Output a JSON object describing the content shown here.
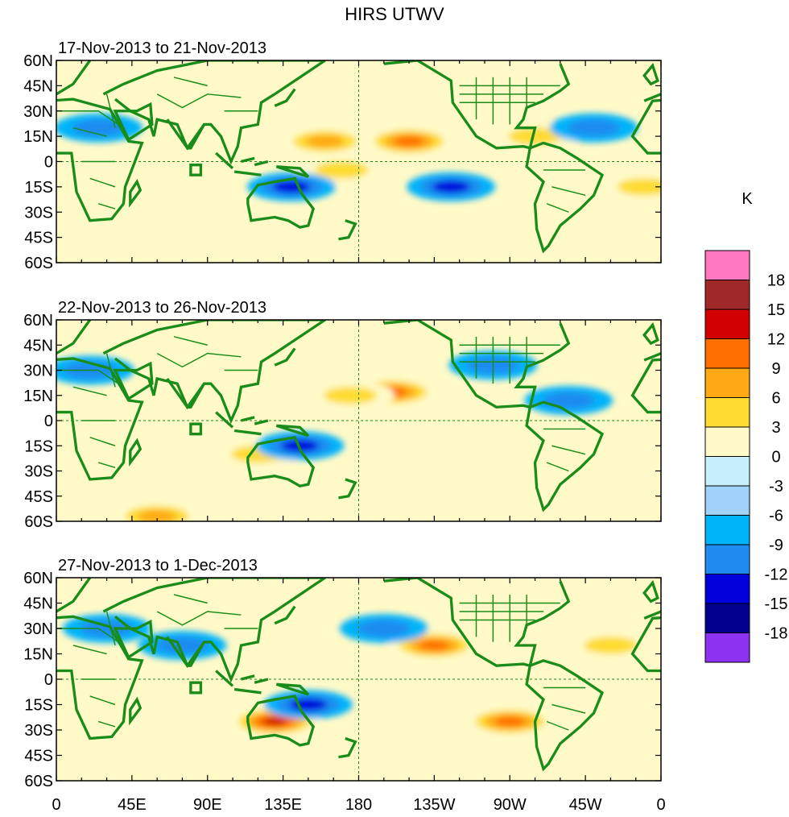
{
  "figure": {
    "title": "HIRS UTWV",
    "units_label": "K"
  },
  "panels": [
    {
      "label": "17-Nov-2013 to 21-Nov-2013"
    },
    {
      "label": "22-Nov-2013 to 26-Nov-2013"
    },
    {
      "label": "27-Nov-2013 to 1-Dec-2013"
    }
  ],
  "y_ticks": [
    "60N",
    "45N",
    "30N",
    "15N",
    "0",
    "15S",
    "30S",
    "45S",
    "60S"
  ],
  "x_ticks": [
    "0",
    "45E",
    "90E",
    "135E",
    "180",
    "135W",
    "90W",
    "45W",
    "0"
  ],
  "colorbar": {
    "labels": [
      "18",
      "15",
      "12",
      "9",
      "6",
      "3",
      "0",
      "-3",
      "-6",
      "-9",
      "-12",
      "-15",
      "-18"
    ],
    "colors": [
      "#ff78c0",
      "#a02828",
      "#d20000",
      "#ff6e00",
      "#ffaa14",
      "#ffdc32",
      "#fffac8",
      "#c8f0fa",
      "#a0d2fa",
      "#00b4fa",
      "#1e8cf0",
      "#0000dc",
      "#00008c",
      "#8c32f0"
    ]
  },
  "chart_data": {
    "type": "heatmap",
    "title": "HIRS UTWV",
    "colorbar_unit": "K",
    "colorbar_levels": [
      -18,
      -15,
      -12,
      -9,
      -6,
      -3,
      0,
      3,
      6,
      9,
      12,
      15,
      18
    ],
    "x_range_deg": [
      0,
      360
    ],
    "y_range_deg": [
      -60,
      60
    ],
    "xticklabels": [
      "0",
      "45E",
      "90E",
      "135E",
      "180",
      "135W",
      "90W",
      "45W",
      "0"
    ],
    "yticklabels": [
      "60N",
      "45N",
      "30N",
      "15N",
      "0",
      "15S",
      "30S",
      "45S",
      "60S"
    ],
    "panels": [
      {
        "label": "17-Nov-2013 to 21-Nov-2013",
        "anomalies": [
          {
            "lon": 210,
            "lat": 12,
            "value": 12
          },
          {
            "lon": 160,
            "lat": 12,
            "value": 9
          },
          {
            "lon": 285,
            "lat": 15,
            "value": 6
          },
          {
            "lon": 170,
            "lat": -5,
            "value": 6
          },
          {
            "lon": 350,
            "lat": -15,
            "value": 6
          },
          {
            "lon": 235,
            "lat": -15,
            "value": -9
          },
          {
            "lon": 140,
            "lat": -15,
            "value": -9
          },
          {
            "lon": 25,
            "lat": 20,
            "value": -6
          },
          {
            "lon": 320,
            "lat": 20,
            "value": -6
          }
        ]
      },
      {
        "label": "22-Nov-2013 to 26-Nov-2013",
        "anomalies": [
          {
            "lon": 200,
            "lat": 17,
            "value": 12
          },
          {
            "lon": 175,
            "lat": 15,
            "value": 6
          },
          {
            "lon": 60,
            "lat": -57,
            "value": 9
          },
          {
            "lon": 120,
            "lat": -20,
            "value": 6
          },
          {
            "lon": 145,
            "lat": -15,
            "value": -9
          },
          {
            "lon": 305,
            "lat": 12,
            "value": -6
          },
          {
            "lon": 260,
            "lat": 33,
            "value": -6
          },
          {
            "lon": 20,
            "lat": 30,
            "value": -6
          }
        ]
      },
      {
        "label": "27-Nov-2013 to 1-Dec-2013",
        "anomalies": [
          {
            "lon": 225,
            "lat": 20,
            "value": 12
          },
          {
            "lon": 130,
            "lat": -25,
            "value": 15
          },
          {
            "lon": 270,
            "lat": -25,
            "value": 12
          },
          {
            "lon": 330,
            "lat": 20,
            "value": 6
          },
          {
            "lon": 150,
            "lat": -15,
            "value": -9
          },
          {
            "lon": 30,
            "lat": 30,
            "value": -6
          },
          {
            "lon": 195,
            "lat": 30,
            "value": -6
          },
          {
            "lon": 75,
            "lat": 20,
            "value": -6
          }
        ]
      }
    ]
  }
}
